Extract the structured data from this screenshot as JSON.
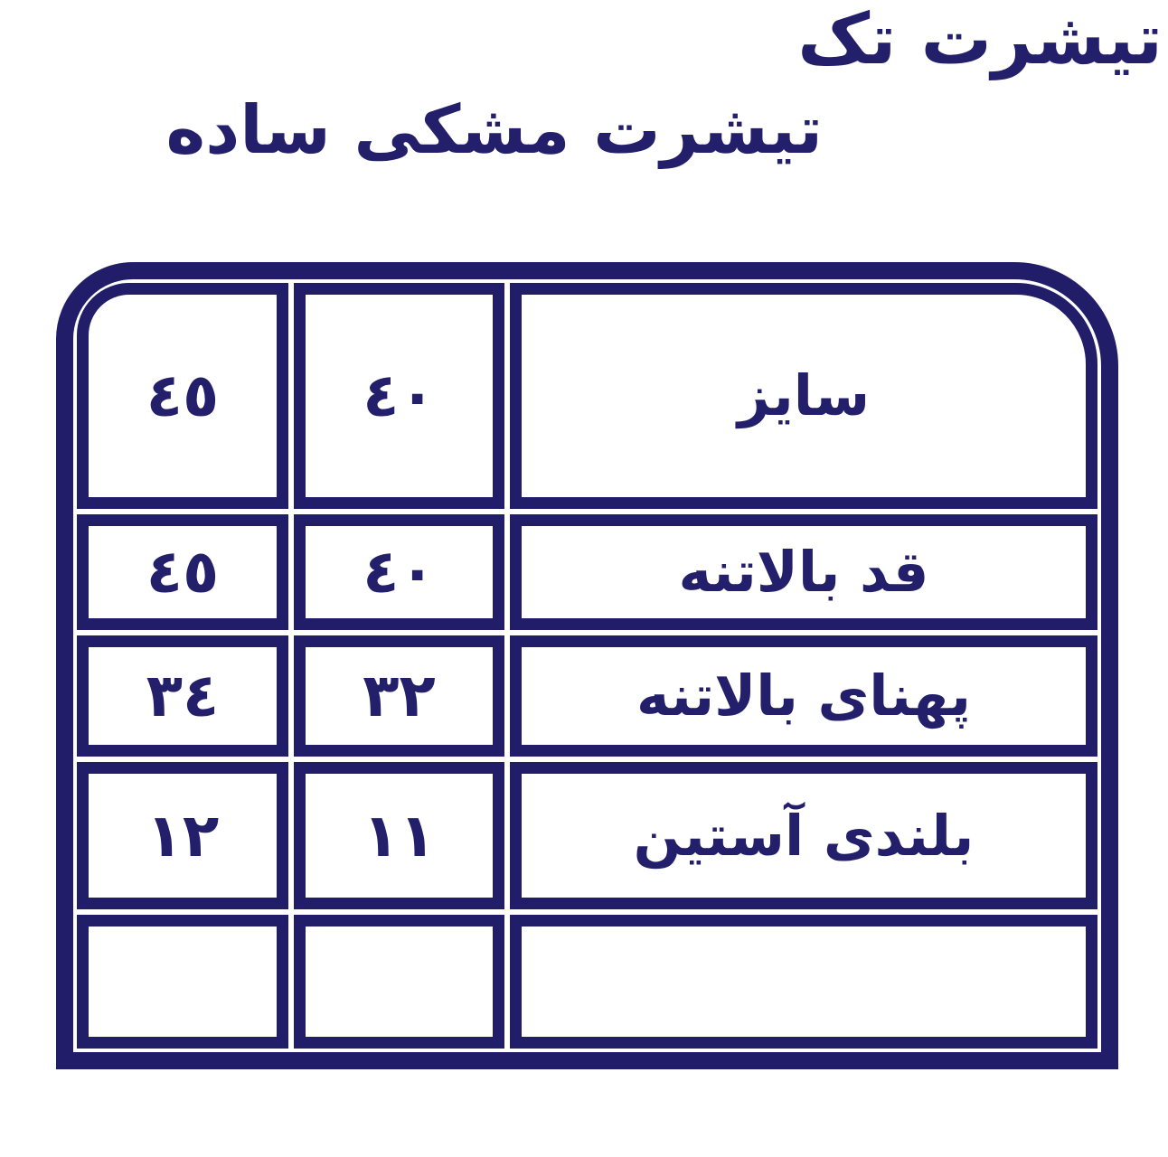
{
  "colors": {
    "ink": "#221d68",
    "background": "#ffffff"
  },
  "header": {
    "title": "تیشرت تک",
    "subtitle": "تیشرت مشکی ساده"
  },
  "table": {
    "rows": [
      {
        "label": "سایز",
        "size40": "٤٠",
        "size45": "٤٥"
      },
      {
        "label": "قد بالاتنه",
        "size40": "٤٠",
        "size45": "٤٥"
      },
      {
        "label": "پهنای بالاتنه",
        "size40": "٣٢",
        "size45": "٣٤"
      },
      {
        "label": "بلندی آستین",
        "size40": "١١",
        "size45": "١٢"
      },
      {
        "label": "",
        "size40": "",
        "size45": ""
      }
    ]
  },
  "chart_data": {
    "type": "table",
    "title": "تیشرت تک",
    "subtitle": "تیشرت مشکی ساده",
    "header_row": [
      "سایز",
      "٤٠",
      "٤٥"
    ],
    "rows": [
      [
        "قد بالاتنه",
        "٤٠",
        "٤٥"
      ],
      [
        "پهنای بالاتنه",
        "٣٢",
        "٣٤"
      ],
      [
        "بلندی آستین",
        "١١",
        "١٢"
      ],
      [
        "",
        "",
        ""
      ]
    ],
    "numeric_values": {
      "sizes": [
        40,
        45
      ],
      "قد بالاتنه": [
        40,
        45
      ],
      "پهنای بالاتنه": [
        32,
        34
      ],
      "بلندی آستین": [
        11,
        12
      ]
    },
    "layout_hints": {
      "direction": "rtl",
      "label_column_side": "right",
      "rounded_corners": "top-only",
      "grid_color": "#221d68",
      "empty_last_row": true
    }
  }
}
